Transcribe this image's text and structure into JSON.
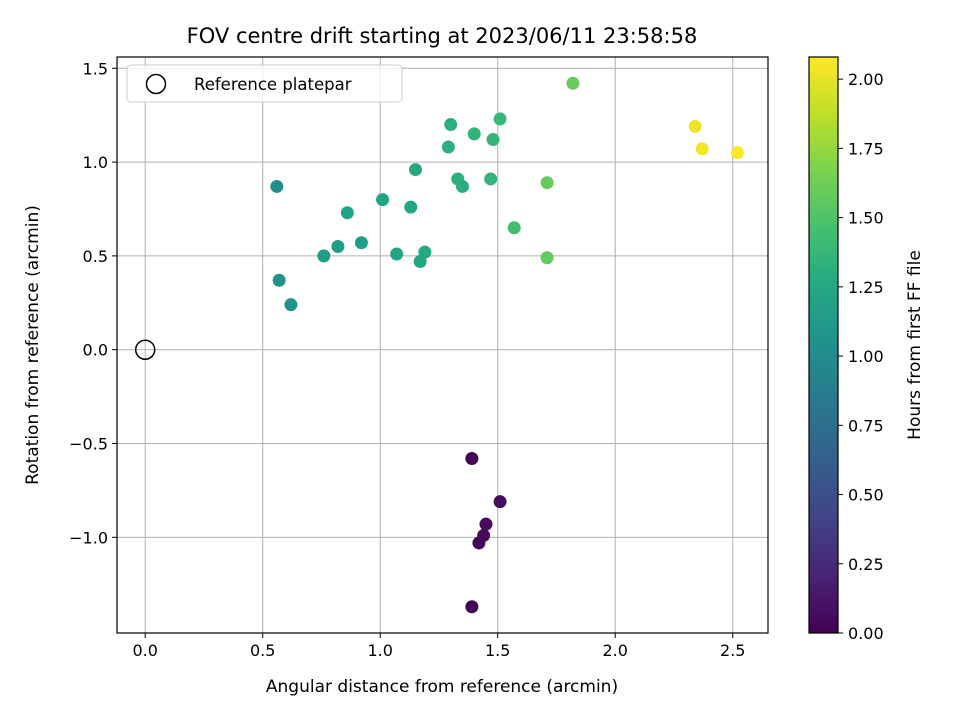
{
  "chart_data": {
    "type": "scatter",
    "title": "FOV centre drift starting at 2023/06/11 23:58:58",
    "xlabel": "Angular distance from reference (arcmin)",
    "ylabel": "Rotation from reference (arcmin)",
    "xlim": [
      -0.12,
      2.65
    ],
    "ylim": [
      -1.51,
      1.56
    ],
    "xticks": [
      0.0,
      0.5,
      1.0,
      1.5,
      2.0,
      2.5
    ],
    "xtick_labels": [
      "0.0",
      "0.5",
      "1.0",
      "1.5",
      "2.0",
      "2.5"
    ],
    "yticks": [
      -1.0,
      -0.5,
      0.0,
      0.5,
      1.0,
      1.5
    ],
    "ytick_labels": [
      "−1.0",
      "−0.5",
      "0.0",
      "0.5",
      "1.0",
      "1.5"
    ],
    "grid": true,
    "legend": {
      "placement": "upper-left",
      "entries": [
        "Reference platepar"
      ]
    },
    "reference_point": {
      "x": 0.0,
      "y": 0.0
    },
    "colorbar": {
      "label": "Hours from first FF file",
      "colormap": "viridis",
      "range": [
        0.0,
        2.08
      ],
      "ticks": [
        0.0,
        0.25,
        0.5,
        0.75,
        1.0,
        1.25,
        1.5,
        1.75,
        2.0
      ],
      "tick_labels": [
        "0.00",
        "0.25",
        "0.50",
        "0.75",
        "1.00",
        "1.25",
        "1.50",
        "1.75",
        "2.00"
      ]
    },
    "points": [
      {
        "x": 1.39,
        "y": -1.37,
        "c": 0.0
      },
      {
        "x": 1.42,
        "y": -1.03,
        "c": 0.02
      },
      {
        "x": 1.44,
        "y": -0.99,
        "c": 0.04
      },
      {
        "x": 1.45,
        "y": -0.93,
        "c": 0.06
      },
      {
        "x": 1.51,
        "y": -0.81,
        "c": 0.07
      },
      {
        "x": 1.39,
        "y": -0.58,
        "c": 0.0
      },
      {
        "x": 0.56,
        "y": 0.87,
        "c": 1.02
      },
      {
        "x": 0.57,
        "y": 0.37,
        "c": 1.04
      },
      {
        "x": 0.62,
        "y": 0.24,
        "c": 1.06
      },
      {
        "x": 0.76,
        "y": 0.5,
        "c": 1.14
      },
      {
        "x": 0.82,
        "y": 0.55,
        "c": 1.16
      },
      {
        "x": 0.86,
        "y": 0.73,
        "c": 1.2
      },
      {
        "x": 0.92,
        "y": 0.57,
        "c": 1.18
      },
      {
        "x": 1.01,
        "y": 0.8,
        "c": 1.22
      },
      {
        "x": 1.07,
        "y": 0.51,
        "c": 1.22
      },
      {
        "x": 1.13,
        "y": 0.76,
        "c": 1.24
      },
      {
        "x": 1.15,
        "y": 0.96,
        "c": 1.26
      },
      {
        "x": 1.17,
        "y": 0.47,
        "c": 1.25
      },
      {
        "x": 1.19,
        "y": 0.52,
        "c": 1.26
      },
      {
        "x": 1.29,
        "y": 1.08,
        "c": 1.3
      },
      {
        "x": 1.3,
        "y": 1.2,
        "c": 1.3
      },
      {
        "x": 1.33,
        "y": 0.91,
        "c": 1.32
      },
      {
        "x": 1.35,
        "y": 0.87,
        "c": 1.3
      },
      {
        "x": 1.4,
        "y": 1.15,
        "c": 1.34
      },
      {
        "x": 1.47,
        "y": 0.91,
        "c": 1.36
      },
      {
        "x": 1.48,
        "y": 1.12,
        "c": 1.36
      },
      {
        "x": 1.51,
        "y": 1.23,
        "c": 1.38
      },
      {
        "x": 1.57,
        "y": 0.65,
        "c": 1.45
      },
      {
        "x": 1.71,
        "y": 0.49,
        "c": 1.58
      },
      {
        "x": 1.71,
        "y": 0.89,
        "c": 1.58
      },
      {
        "x": 1.82,
        "y": 1.42,
        "c": 1.6
      },
      {
        "x": 2.34,
        "y": 1.19,
        "c": 2.03
      },
      {
        "x": 2.37,
        "y": 1.07,
        "c": 2.05
      },
      {
        "x": 2.52,
        "y": 1.05,
        "c": 2.07
      }
    ]
  }
}
